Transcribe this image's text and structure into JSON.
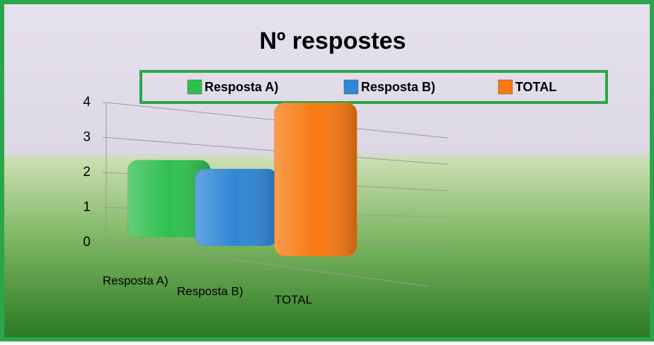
{
  "chart_data": {
    "type": "bar",
    "title": "Nº respostes",
    "categories": [
      "Resposta A)",
      "Resposta B)",
      "TOTAL"
    ],
    "values": [
      2,
      2,
      4
    ],
    "colors": [
      "#2fbf4f",
      "#2f86d4",
      "#f77a12"
    ],
    "ylim": [
      0,
      4
    ],
    "yticks": [
      0,
      1,
      2,
      3,
      4
    ],
    "grid": true,
    "legend": "top"
  }
}
